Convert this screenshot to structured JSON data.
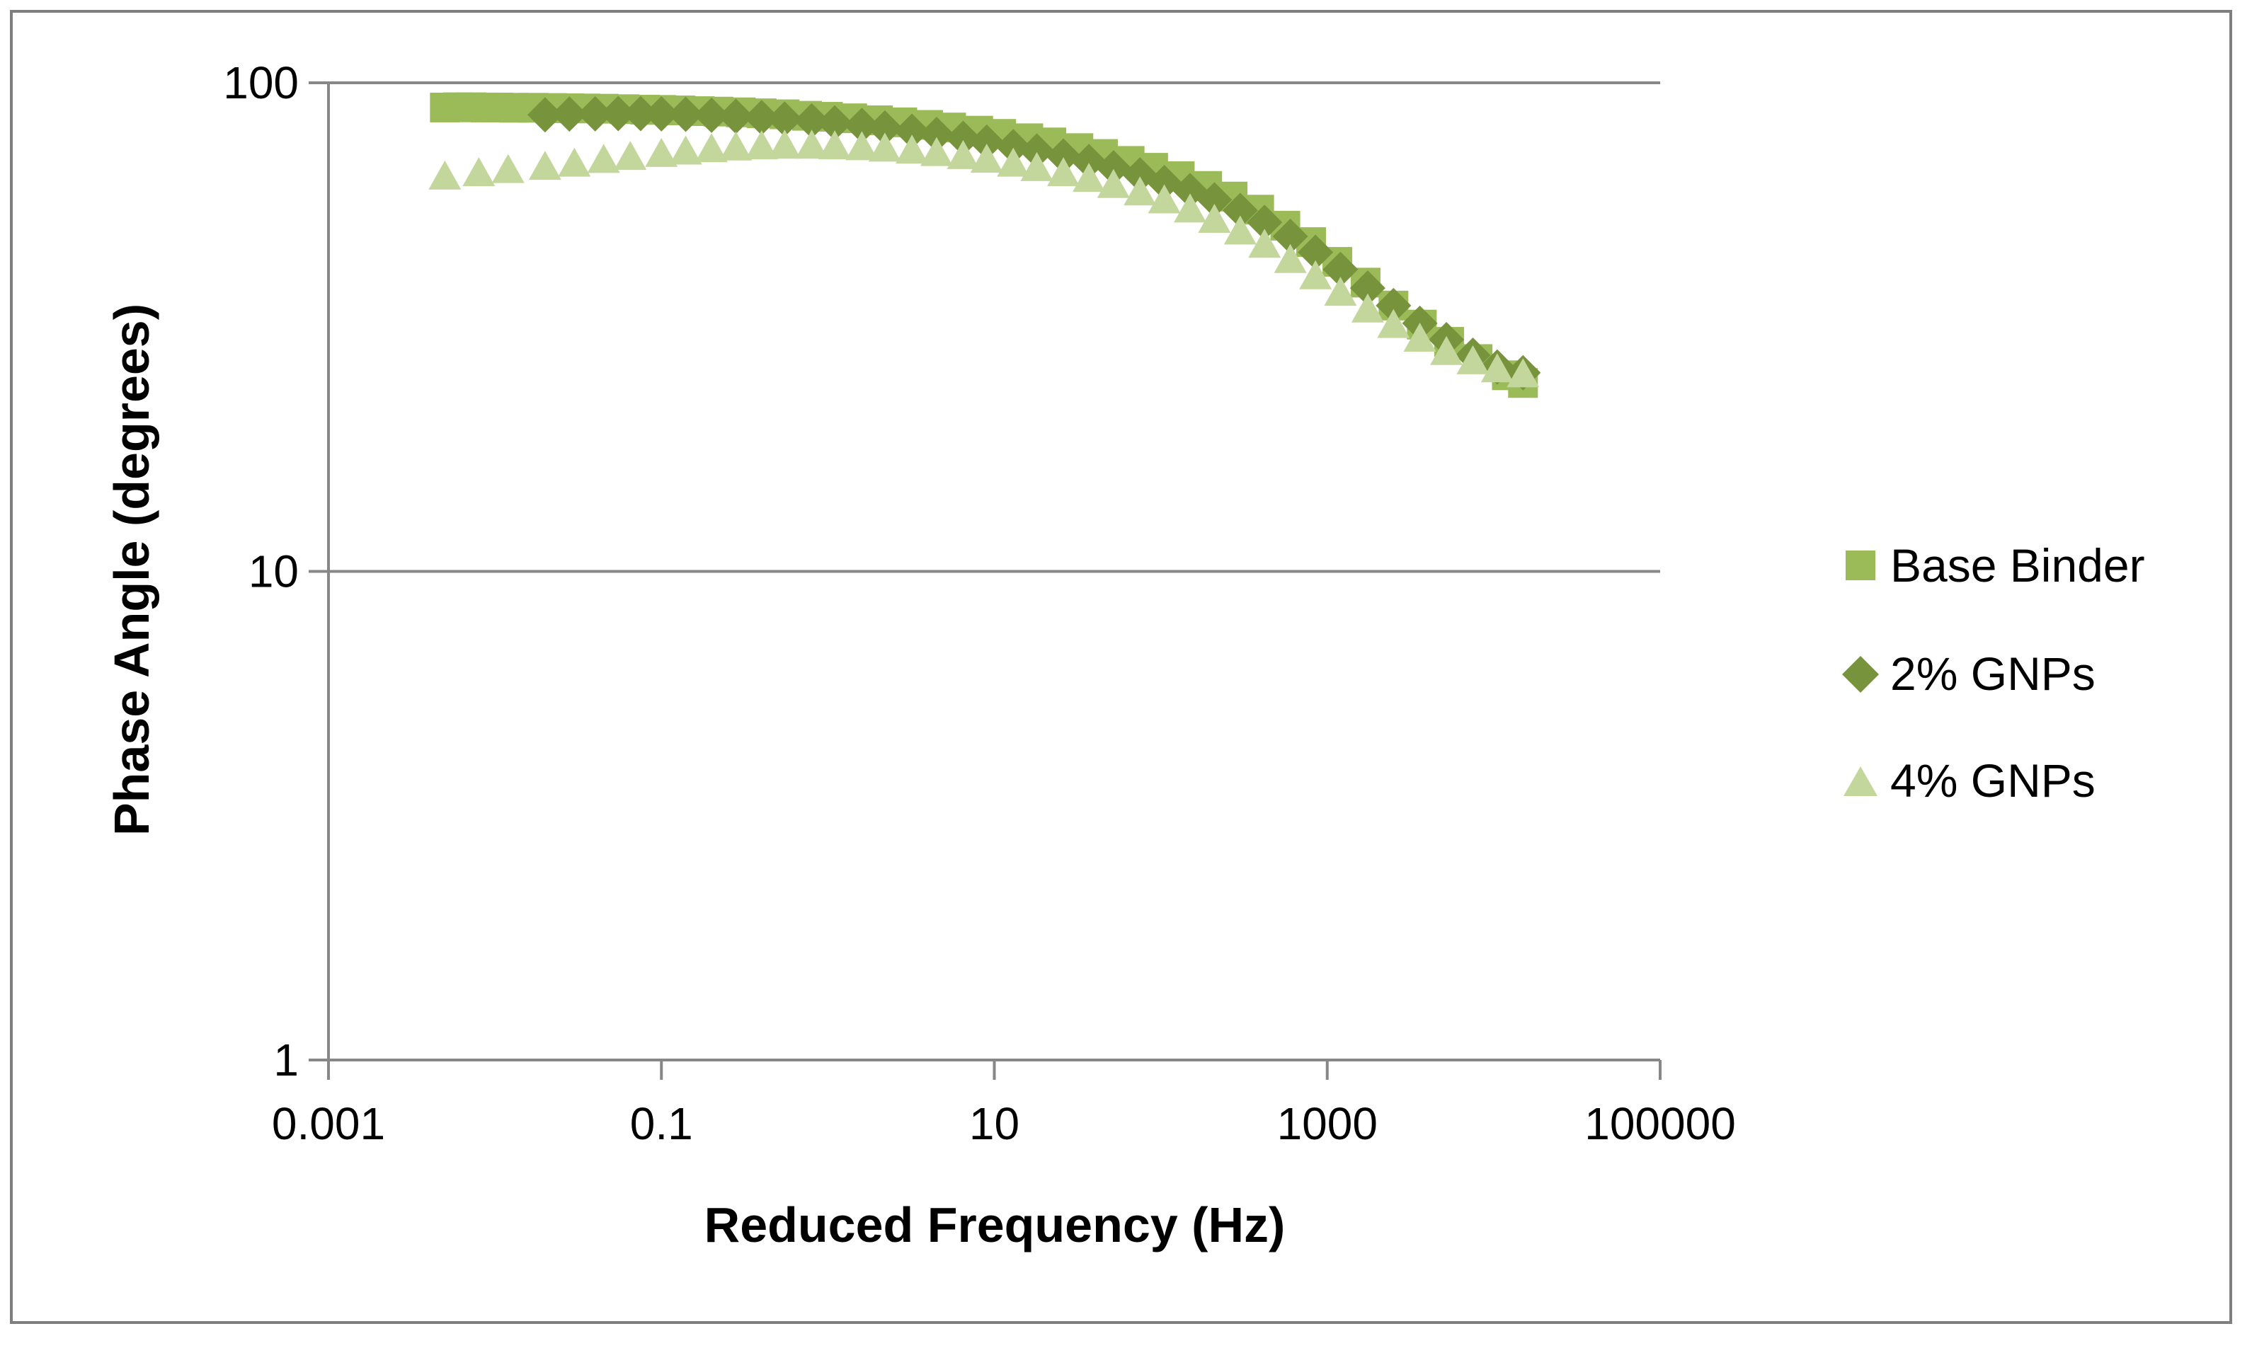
{
  "chart_data": {
    "type": "scatter",
    "title": "",
    "xlabel": "Reduced Frequency (Hz)",
    "ylabel": "Phase Angle (degrees)",
    "xscale": "log",
    "yscale": "log",
    "xlim": [
      0.001,
      100000
    ],
    "ylim": [
      1,
      100
    ],
    "xticks": [
      0.001,
      0.1,
      10,
      1000,
      100000
    ],
    "xtick_labels": [
      "0.001",
      "0.1",
      "10",
      "1000",
      "100000"
    ],
    "yticks": [
      1,
      10,
      100
    ],
    "ytick_labels": [
      "1",
      "10",
      "100"
    ],
    "grid": "horizontal major",
    "legend_position": "right",
    "series": [
      {
        "name": "Base Binder",
        "marker": "square",
        "color": "#9BBB59",
        "points": [
          [
            0.005,
            89.0
          ],
          [
            0.006,
            89.1
          ],
          [
            0.0072,
            89.1
          ],
          [
            0.0088,
            89.0
          ],
          [
            0.0105,
            89.0
          ],
          [
            0.013,
            88.9
          ],
          [
            0.017,
            88.9
          ],
          [
            0.022,
            88.8
          ],
          [
            0.028,
            88.7
          ],
          [
            0.035,
            88.6
          ],
          [
            0.045,
            88.5
          ],
          [
            0.06,
            88.3
          ],
          [
            0.08,
            88.1
          ],
          [
            0.1,
            88.0
          ],
          [
            0.13,
            87.8
          ],
          [
            0.17,
            87.5
          ],
          [
            0.22,
            87.3
          ],
          [
            0.3,
            87.0
          ],
          [
            0.4,
            86.6
          ],
          [
            0.55,
            86.2
          ],
          [
            0.75,
            85.6
          ],
          [
            1.0,
            85.2
          ],
          [
            1.4,
            84.6
          ],
          [
            2.0,
            83.8
          ],
          [
            2.8,
            83.0
          ],
          [
            4.0,
            82.0
          ],
          [
            5.5,
            81.0
          ],
          [
            8.0,
            79.8
          ],
          [
            11,
            78.6
          ],
          [
            16,
            77.0
          ],
          [
            22,
            75.5
          ],
          [
            32,
            73.5
          ],
          [
            45,
            71.5
          ],
          [
            65,
            69.2
          ],
          [
            90,
            67.0
          ],
          [
            130,
            64.4
          ],
          [
            190,
            61.5
          ],
          [
            270,
            58.5
          ],
          [
            390,
            55.0
          ],
          [
            560,
            51.0
          ],
          [
            800,
            47.2
          ],
          [
            1150,
            43.0
          ],
          [
            1700,
            39.0
          ],
          [
            2500,
            35.0
          ],
          [
            3700,
            32.0
          ],
          [
            5400,
            29.5
          ],
          [
            8000,
            27.2
          ],
          [
            12000,
            25.2
          ],
          [
            15000,
            24.3
          ]
        ]
      },
      {
        "name": "2% GNPs",
        "marker": "diamond",
        "color": "#77933C",
        "points": [
          [
            0.02,
            86.0
          ],
          [
            0.028,
            86.3
          ],
          [
            0.04,
            86.4
          ],
          [
            0.055,
            86.5
          ],
          [
            0.075,
            86.5
          ],
          [
            0.1,
            86.4
          ],
          [
            0.14,
            86.2
          ],
          [
            0.2,
            85.8
          ],
          [
            0.28,
            85.4
          ],
          [
            0.4,
            84.9
          ],
          [
            0.55,
            84.3
          ],
          [
            0.8,
            83.6
          ],
          [
            1.1,
            82.8
          ],
          [
            1.6,
            81.8
          ],
          [
            2.2,
            80.8
          ],
          [
            3.2,
            79.6
          ],
          [
            4.5,
            78.4
          ],
          [
            6.5,
            77.0
          ],
          [
            9,
            75.6
          ],
          [
            13,
            74.0
          ],
          [
            18,
            72.5
          ],
          [
            26,
            70.8
          ],
          [
            37,
            69.0
          ],
          [
            52,
            67.0
          ],
          [
            75,
            64.8
          ],
          [
            105,
            62.5
          ],
          [
            150,
            60.2
          ],
          [
            210,
            57.6
          ],
          [
            300,
            54.8
          ],
          [
            420,
            51.8
          ],
          [
            600,
            48.5
          ],
          [
            850,
            45.0
          ],
          [
            1200,
            41.5
          ],
          [
            1750,
            38.0
          ],
          [
            2500,
            35.0
          ],
          [
            3600,
            32.2
          ],
          [
            5200,
            29.8
          ],
          [
            7500,
            27.7
          ],
          [
            10500,
            26.2
          ],
          [
            15000,
            25.5
          ]
        ]
      },
      {
        "name": "4% GNPs",
        "marker": "triangle",
        "color": "#C3D69B",
        "points": [
          [
            0.005,
            64.0
          ],
          [
            0.008,
            65.0
          ],
          [
            0.012,
            66.0
          ],
          [
            0.02,
            67.0
          ],
          [
            0.03,
            68.0
          ],
          [
            0.045,
            69.2
          ],
          [
            0.065,
            70.2
          ],
          [
            0.1,
            71.2
          ],
          [
            0.14,
            72.0
          ],
          [
            0.2,
            72.8
          ],
          [
            0.28,
            73.4
          ],
          [
            0.4,
            73.8
          ],
          [
            0.55,
            74.0
          ],
          [
            0.8,
            74.0
          ],
          [
            1.1,
            73.8
          ],
          [
            1.6,
            73.5
          ],
          [
            2.2,
            73.0
          ],
          [
            3.2,
            72.3
          ],
          [
            4.5,
            71.5
          ],
          [
            6.5,
            70.5
          ],
          [
            9,
            69.3
          ],
          [
            13,
            68.0
          ],
          [
            18,
            66.6
          ],
          [
            26,
            65.0
          ],
          [
            37,
            63.3
          ],
          [
            52,
            61.5
          ],
          [
            75,
            59.4
          ],
          [
            105,
            57.2
          ],
          [
            150,
            54.8
          ],
          [
            210,
            52.2
          ],
          [
            300,
            49.4
          ],
          [
            420,
            46.4
          ],
          [
            600,
            43.2
          ],
          [
            850,
            40.0
          ],
          [
            1200,
            37.0
          ],
          [
            1750,
            34.2
          ],
          [
            2500,
            31.8
          ],
          [
            3600,
            29.8
          ],
          [
            5200,
            28.0
          ],
          [
            7500,
            26.8
          ],
          [
            10500,
            25.8
          ],
          [
            15000,
            25.2
          ]
        ]
      }
    ]
  }
}
